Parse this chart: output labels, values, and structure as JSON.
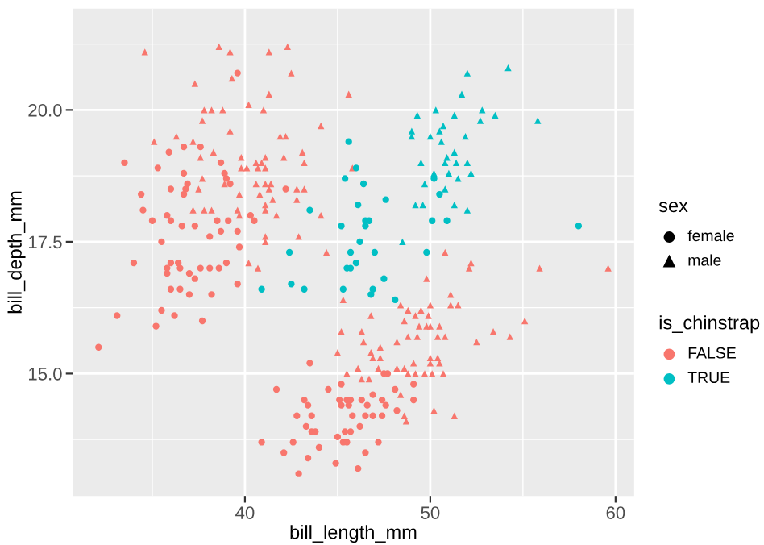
{
  "chart_data": {
    "type": "scatter",
    "xlabel": "bill_length_mm",
    "ylabel": "bill_depth_mm",
    "xlim": [
      30.7,
      61.0
    ],
    "xticks": [
      40,
      50,
      60
    ],
    "ylim": [
      12.68,
      21.92
    ],
    "yticks": [
      {
        "value": 15.0,
        "label": "15.0"
      },
      {
        "value": 17.5,
        "label": "17.5"
      },
      {
        "value": 20.0,
        "label": "20.0"
      }
    ],
    "grid": true,
    "annotations": [
      "sex",
      "female",
      "male",
      "is_chinstrap",
      "FALSE",
      "TRUE"
    ],
    "series": [
      {
        "color": "#f8766d",
        "marker": "circle",
        "x": [
          33.5,
          35.9,
          36.7,
          37.6,
          38.7,
          35.3,
          36.7,
          38.9,
          39.0,
          39.2,
          36.9,
          36.8,
          36.0,
          36.7,
          34.4,
          34.5,
          35.8,
          35.0,
          36.0,
          36.6,
          38.5,
          39.1,
          37.3,
          38.7,
          38.1,
          35.5,
          39.6,
          42.2,
          40.3,
          40.5,
          39.6,
          39.7,
          34.0,
          35.8,
          35.8,
          36.0,
          36.4,
          36.5,
          37.0,
          37.3,
          37.6,
          38.1,
          38.6,
          39.0,
          36.0,
          36.5,
          37.0,
          38.2,
          33.1,
          35.5,
          36.2,
          35.2,
          37.7,
          32.1,
          39.6,
          43.5,
          41.7,
          44.5,
          45.2,
          47.5,
          47.7,
          49.1,
          48.1,
          43.2,
          43.4,
          42.8,
          43.6,
          43.3,
          43.6,
          43.8,
          45.1,
          45.5,
          45.7,
          45.6,
          45.2,
          46.3,
          46.6,
          46.9,
          47.4,
          47.6,
          46.5,
          46.9,
          45.8,
          47.4,
          48.2,
          49.1,
          45.0,
          45.4,
          45.7,
          45.3,
          45.5,
          40.9,
          42.6,
          44.0,
          42.1,
          43.4,
          44.9,
          42.9,
          46.1,
          46.5,
          47.2,
          46.2
        ],
        "values": [
          19.0,
          19.2,
          19.3,
          19.3,
          19.0,
          18.9,
          18.8,
          18.8,
          18.7,
          18.6,
          18.6,
          18.5,
          18.5,
          18.4,
          18.4,
          18.1,
          18.0,
          17.9,
          17.9,
          17.8,
          17.9,
          17.9,
          17.8,
          17.7,
          17.6,
          17.5,
          20.7,
          18.5,
          18.0,
          17.9,
          17.7,
          17.4,
          17.1,
          17.0,
          16.9,
          17.1,
          17.1,
          17.0,
          16.9,
          16.8,
          17.0,
          17.0,
          17.0,
          17.1,
          16.6,
          16.6,
          16.5,
          16.5,
          16.1,
          16.2,
          16.1,
          15.9,
          16.0,
          15.5,
          16.7,
          15.2,
          14.7,
          14.7,
          14.8,
          15.0,
          15.0,
          14.8,
          14.7,
          14.5,
          14.4,
          14.2,
          14.2,
          14.0,
          13.9,
          13.9,
          14.5,
          14.5,
          14.5,
          14.4,
          14.4,
          14.5,
          14.4,
          14.6,
          14.5,
          14.4,
          14.2,
          14.2,
          14.2,
          14.2,
          14.3,
          14.5,
          13.8,
          13.9,
          13.9,
          13.7,
          13.7,
          13.7,
          13.7,
          13.6,
          13.5,
          13.4,
          13.3,
          13.1,
          13.2,
          13.5,
          13.7,
          14.0
        ]
      },
      {
        "color": "#f8766d",
        "marker": "triangle",
        "x": [
          34.6,
          38.6,
          39.2,
          39.3,
          37.3,
          37.8,
          38.2,
          38.8,
          37.7,
          39.2,
          36.3,
          35.1,
          37.2,
          38.3,
          37.6,
          37.7,
          37.5,
          37.2,
          37.8,
          38.2,
          38.9,
          41.3,
          42.3,
          42.5,
          41.3,
          40.2,
          41.0,
          45.6,
          44.1,
          41.9,
          42.2,
          43.1,
          42.1,
          43.2,
          39.8,
          41.1,
          40.6,
          40.9,
          40.7,
          39.8,
          40.1,
          41.1,
          45.8,
          40.6,
          41.1,
          41.4,
          41.3,
          42.8,
          43.2,
          39.7,
          40.8,
          41.5,
          42.8,
          41.1,
          41.1,
          41.7,
          44.1,
          39.6,
          39.7,
          41.1,
          41.1,
          42.9,
          44.4,
          50.8,
          40.2,
          40.7,
          45.3,
          46.8,
          48.4,
          48.8,
          49.2,
          49.5,
          48.6,
          49.4,
          45.2,
          46.3,
          46.4,
          45.0,
          47.3,
          46.8,
          46.9,
          47.3,
          48.8,
          48.2,
          49.3,
          45.5,
          46.1,
          46.3,
          46.7,
          47.2,
          48.2,
          48.6,
          48.8,
          49.1,
          49.2,
          48.4,
          48.6,
          48.7,
          52.2,
          52.1,
          55.9,
          59.6,
          49.8,
          51.1,
          51.1,
          51.5,
          50.0,
          49.9,
          49.8,
          50.0,
          50.5,
          55.1,
          53.4,
          54.3,
          52.5,
          50.4,
          50.8,
          50.0,
          50.4,
          50.5,
          50.0,
          49.7,
          50.1,
          50.7,
          50.2,
          51.3
        ],
        "values": [
          21.1,
          21.2,
          21.1,
          20.6,
          20.5,
          20.0,
          20.0,
          20.0,
          19.8,
          19.6,
          19.5,
          19.4,
          19.4,
          19.2,
          19.1,
          18.7,
          18.5,
          18.1,
          18.1,
          18.1,
          18.6,
          21.1,
          21.2,
          20.7,
          20.3,
          20.1,
          20.0,
          20.3,
          19.7,
          19.5,
          19.5,
          19.2,
          19.1,
          19.0,
          19.1,
          19.1,
          19.0,
          19.0,
          18.9,
          18.9,
          18.9,
          18.9,
          18.9,
          18.6,
          18.6,
          18.6,
          18.5,
          18.5,
          18.5,
          18.4,
          18.4,
          18.3,
          18.3,
          18.2,
          18.1,
          18.0,
          18.0,
          18.1,
          18.0,
          17.6,
          17.5,
          17.6,
          17.3,
          17.3,
          17.1,
          17.0,
          16.4,
          16.1,
          16.3,
          16.2,
          16.1,
          16.2,
          16.0,
          15.9,
          15.8,
          15.8,
          15.6,
          15.4,
          15.5,
          15.4,
          15.3,
          15.3,
          15.7,
          15.6,
          15.7,
          15.0,
          15.1,
          14.9,
          14.9,
          15.1,
          15.1,
          15.1,
          15.0,
          15.2,
          15.0,
          14.6,
          14.2,
          14.1,
          17.1,
          17.0,
          17.0,
          17.0,
          16.8,
          16.5,
          16.3,
          16.3,
          16.3,
          16.1,
          15.9,
          15.9,
          15.9,
          16.0,
          15.8,
          15.7,
          15.6,
          15.7,
          15.7,
          15.3,
          15.3,
          15.2,
          15.2,
          15.0,
          15.0,
          15.0,
          14.3,
          14.2
        ]
      },
      {
        "color": "#00bfc4",
        "marker": "circle",
        "x": [
          45.6,
          46.0,
          45.4,
          46.4,
          46.1,
          47.6,
          43.5,
          45.2,
          46.5,
          46.7,
          46.5,
          46.2,
          42.4,
          45.7,
          47.0,
          50.2,
          50.5,
          50.1,
          50.9,
          58.0,
          49.8,
          45.5,
          45.7,
          46.0,
          42.5,
          40.9,
          43.2,
          45.3,
          46.9,
          46.8,
          47.5,
          48.1
        ],
        "values": [
          19.4,
          18.9,
          18.7,
          18.6,
          18.2,
          18.3,
          18.1,
          17.8,
          17.9,
          17.9,
          17.8,
          17.5,
          17.3,
          17.3,
          17.3,
          18.7,
          18.4,
          17.9,
          17.9,
          17.8,
          17.3,
          17.0,
          17.0,
          17.1,
          16.7,
          16.6,
          16.6,
          16.6,
          16.6,
          16.5,
          16.8,
          16.4
        ]
      },
      {
        "color": "#00bfc4",
        "marker": "triangle",
        "x": [
          49.3,
          49.0,
          49.0,
          49.5,
          49.7,
          49.2,
          49.6,
          48.5,
          52.0,
          54.2,
          51.7,
          50.3,
          51.3,
          52.8,
          52.7,
          53.5,
          55.8,
          50.7,
          50.5,
          50.0,
          51.9,
          50.6,
          51.3,
          50.9,
          50.8,
          51.4,
          52.0,
          50.2,
          51.0,
          52.2,
          51.5,
          50.8,
          51.3,
          52.0
        ],
        "values": [
          19.9,
          19.6,
          19.5,
          19.0,
          18.6,
          18.2,
          18.2,
          17.5,
          20.7,
          20.8,
          20.3,
          20.0,
          19.9,
          20.0,
          19.8,
          19.9,
          19.8,
          19.7,
          19.6,
          19.5,
          19.5,
          19.4,
          19.2,
          19.1,
          19.0,
          19.0,
          19.0,
          18.8,
          18.8,
          18.8,
          18.7,
          18.5,
          18.2,
          18.1
        ]
      }
    ]
  }
}
